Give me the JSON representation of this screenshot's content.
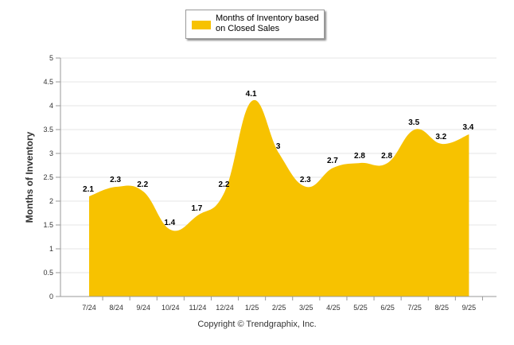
{
  "colors": {
    "area": "#f7c200",
    "grid": "#e6e6e6",
    "axis": "#999999"
  },
  "legend": {
    "label_line1": "Months of Inventory based",
    "label_line2": "on Closed Sales"
  },
  "copyright": "Copyright © Trendgraphix, Inc.",
  "chart_data": {
    "type": "area",
    "title": "",
    "xlabel": "",
    "ylabel": "Months of Inventory",
    "ylim": [
      0,
      5
    ],
    "yticks": [
      "0",
      "0.5",
      "1",
      "1.5",
      "2",
      "2.5",
      "3",
      "3.5",
      "4",
      "4.5",
      "5"
    ],
    "categories": [
      "7/24",
      "8/24",
      "9/24",
      "10/24",
      "11/24",
      "12/24",
      "1/25",
      "2/25",
      "3/25",
      "4/25",
      "5/25",
      "6/25",
      "7/25",
      "8/25",
      "9/25"
    ],
    "series": [
      {
        "name": "Months of Inventory based on Closed Sales",
        "values": [
          2.1,
          2.3,
          2.2,
          1.4,
          1.7,
          2.2,
          4.1,
          3,
          2.3,
          2.7,
          2.8,
          2.8,
          3.5,
          3.2,
          3.4
        ],
        "labels": [
          "2.1",
          "2.3",
          "2.2",
          "1.4",
          "1.7",
          "2.2",
          "4.1",
          "3",
          "2.3",
          "2.7",
          "2.8",
          "2.8",
          "3.5",
          "3.2",
          "3.4"
        ]
      }
    ],
    "grid": true,
    "legend_position": "top-center"
  }
}
